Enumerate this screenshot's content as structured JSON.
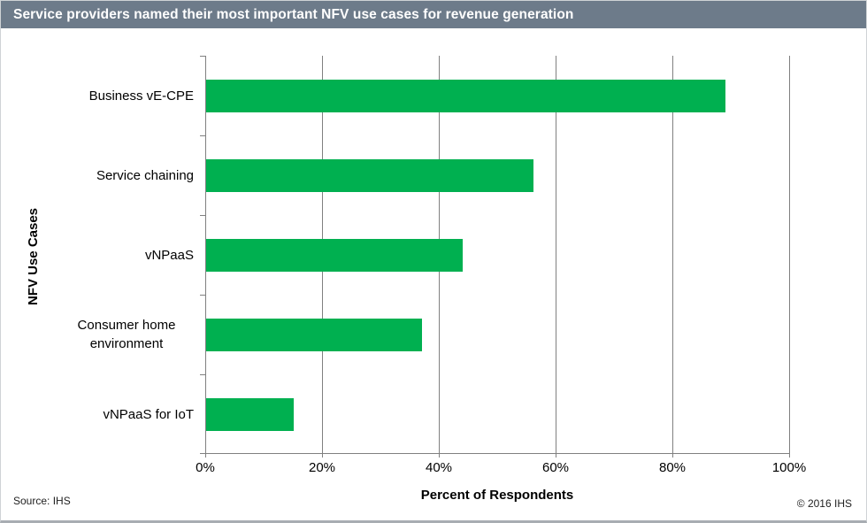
{
  "header": {
    "title": "Service providers named their most important NFV use cases for revenue generation",
    "bg_color": "#6d7b8a",
    "text_color": "#ffffff"
  },
  "chart_data": {
    "type": "bar",
    "orientation": "horizontal",
    "title": "Service providers named their most important NFV use cases for revenue generation",
    "categories": [
      "Business vE-CPE",
      "Service chaining",
      "vNPaaS",
      "Consumer home environment",
      "vNPaaS for IoT"
    ],
    "values": [
      89,
      56,
      44,
      37,
      15
    ],
    "unit": "%",
    "xlabel": "Percent of Respondents",
    "ylabel": "NFV Use Cases",
    "xlim": [
      0,
      100
    ],
    "xticks": [
      0,
      20,
      40,
      60,
      80,
      100
    ],
    "xtick_labels": [
      "0%",
      "20%",
      "40%",
      "60%",
      "80%",
      "100%"
    ],
    "grid": "vertical-gridlines-on",
    "legend": "none",
    "bar_color": "#00b050",
    "axis_color": "#808080"
  },
  "footer": {
    "source": "Source: IHS",
    "copyright": "© 2016 IHS"
  }
}
